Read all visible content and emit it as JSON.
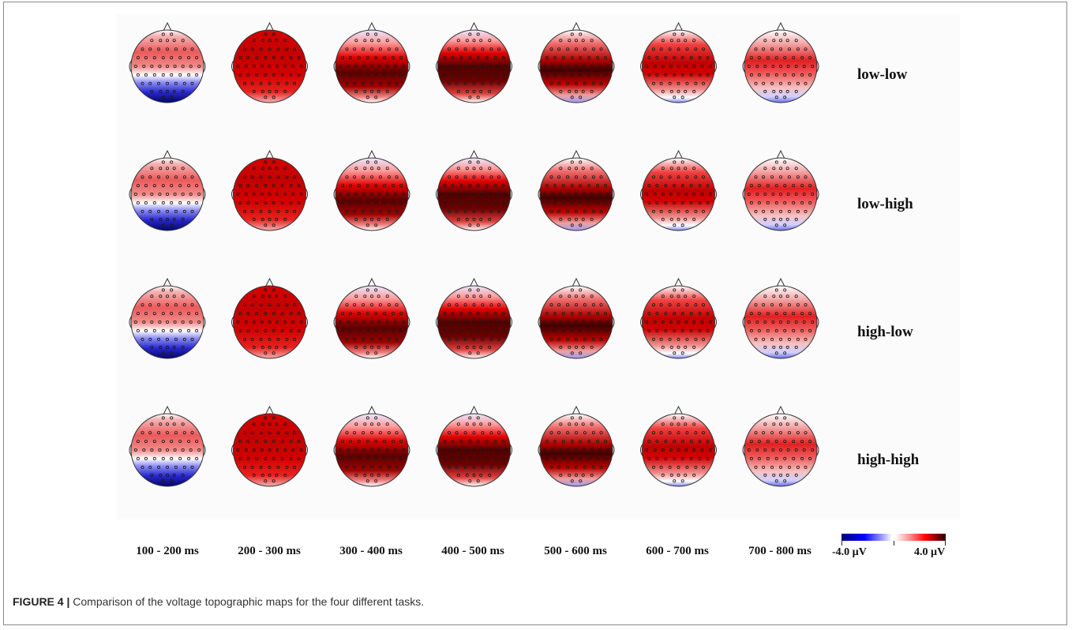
{
  "figure": {
    "conditions": [
      "low-low",
      "low-high",
      "high-low",
      "high-high"
    ],
    "time_windows": [
      "100 - 200 ms",
      "200 - 300 ms",
      "300 - 400 ms",
      "400 - 500 ms",
      "500 - 600 ms",
      "600 - 700 ms",
      "700 - 800 ms"
    ],
    "colorbar": {
      "min_label": "-4.0 µV",
      "max_label": "4.0 µV",
      "negative_color": "#0000ff",
      "positive_color": "#ff0000",
      "peak_color": "#2a0000"
    },
    "caption": {
      "number": "FIGURE 4 |",
      "text": "Comparison of the voltage topographic maps for the four different tasks."
    }
  }
}
